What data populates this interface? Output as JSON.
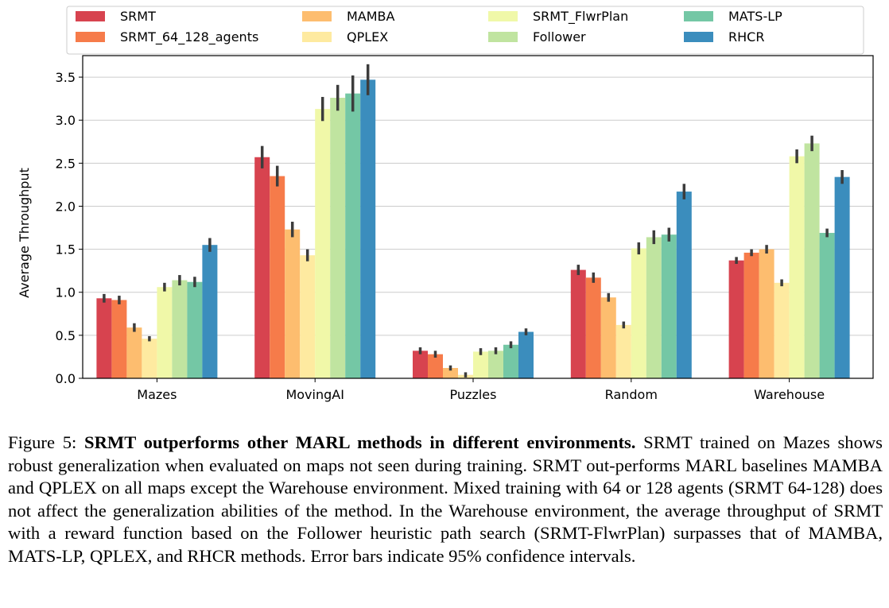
{
  "chart_data": {
    "type": "bar",
    "title": "",
    "xlabel": "",
    "ylabel": "Average Throughput",
    "ylim": [
      0,
      3.75
    ],
    "yticks": [
      "0.0",
      "0.5",
      "1.0",
      "1.5",
      "2.0",
      "2.5",
      "3.0",
      "3.5"
    ],
    "grid": "horizontal",
    "legend_position": "top",
    "categories": [
      "Mazes",
      "MovingAI",
      "Puzzles",
      "Random",
      "Warehouse"
    ],
    "series": [
      {
        "name": "SRMT",
        "color": "#d7434f",
        "values": [
          0.93,
          2.57,
          0.32,
          1.26,
          1.37
        ],
        "ci": [
          0.05,
          0.13,
          0.04,
          0.06,
          0.04
        ]
      },
      {
        "name": "SRMT_64_128_agents",
        "color": "#f67b4a",
        "values": [
          0.91,
          2.35,
          0.28,
          1.17,
          1.46
        ],
        "ci": [
          0.05,
          0.12,
          0.04,
          0.06,
          0.04
        ]
      },
      {
        "name": "MAMBA",
        "color": "#fdbd6f",
        "values": [
          0.59,
          1.73,
          0.12,
          0.94,
          1.5
        ],
        "ci": [
          0.05,
          0.09,
          0.03,
          0.05,
          0.05
        ]
      },
      {
        "name": "QPLEX",
        "color": "#feeaa0",
        "values": [
          0.46,
          1.43,
          0.04,
          0.62,
          1.11
        ],
        "ci": [
          0.03,
          0.07,
          0.03,
          0.04,
          0.04
        ]
      },
      {
        "name": "SRMT_FlwrPlan",
        "color": "#f0f8a8",
        "values": [
          1.06,
          3.13,
          0.31,
          1.51,
          2.58
        ],
        "ci": [
          0.05,
          0.14,
          0.04,
          0.07,
          0.08
        ]
      },
      {
        "name": "Follower",
        "color": "#c0e4a0",
        "values": [
          1.14,
          3.26,
          0.32,
          1.64,
          2.73
        ],
        "ci": [
          0.06,
          0.15,
          0.04,
          0.08,
          0.09
        ]
      },
      {
        "name": "MATS-LP",
        "color": "#74c7a5",
        "values": [
          1.12,
          3.31,
          0.39,
          1.67,
          1.69
        ],
        "ci": [
          0.06,
          0.21,
          0.04,
          0.08,
          0.05
        ]
      },
      {
        "name": "RHCR",
        "color": "#3b8dbd",
        "values": [
          1.55,
          3.47,
          0.54,
          2.17,
          2.34
        ],
        "ci": [
          0.08,
          0.18,
          0.04,
          0.09,
          0.08
        ]
      }
    ]
  },
  "caption": {
    "prefix": "Figure 5: ",
    "bold": "SRMT outperforms other MARL methods in different environments.",
    "body": " SRMT trained on Mazes shows robust generalization when evaluated on maps not seen during training. SRMT out-performs MARL baselines MAMBA and QPLEX on all maps except the Warehouse environment. Mixed training with 64 or 128 agents (SRMT 64-128) does not affect the generalization abilities of the method.  In the Warehouse environment, the average throughput of SRMT with a reward function based on the Follower heuristic path search (SRMT-FlwrPlan) surpasses that of MAMBA, MATS-LP, QPLEX, and RHCR methods. Error bars indicate 95% confidence intervals."
  }
}
